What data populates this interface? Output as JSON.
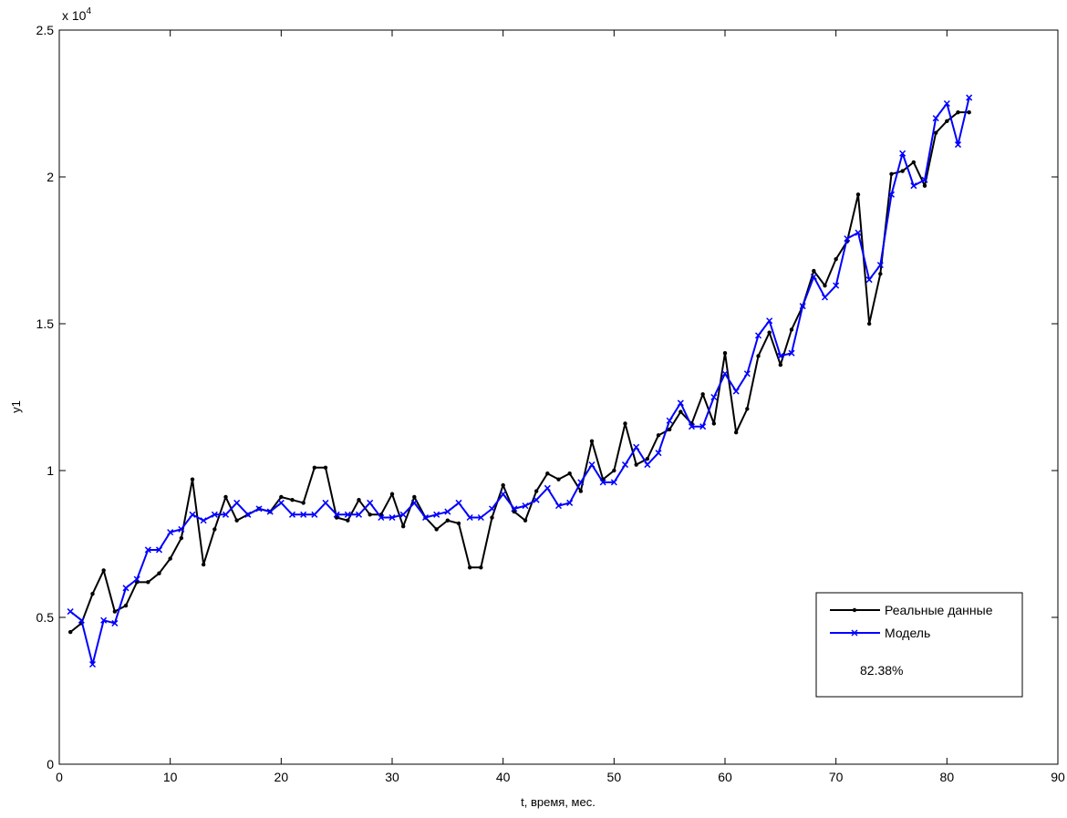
{
  "chart_data": {
    "type": "line",
    "xlabel": "t, время, мес.",
    "ylabel": "y1",
    "y_exponent_label": "x 10",
    "y_exponent_power": "4",
    "xlim": [
      0,
      90
    ],
    "ylim": [
      0,
      25000
    ],
    "x_ticks": [
      0,
      10,
      20,
      30,
      40,
      50,
      60,
      70,
      80,
      90
    ],
    "y_ticks": [
      0,
      5000,
      10000,
      15000,
      20000,
      25000
    ],
    "x_tick_labels": [
      "0",
      "10",
      "20",
      "30",
      "40",
      "50",
      "60",
      "70",
      "80",
      "90"
    ],
    "y_tick_labels": [
      "0",
      "0.5",
      "1",
      "1.5",
      "2",
      "2.5"
    ],
    "grid": false,
    "legend_position": "bottom-right",
    "annotation": "82.38%",
    "x": [
      1,
      2,
      3,
      4,
      5,
      6,
      7,
      8,
      9,
      10,
      11,
      12,
      13,
      14,
      15,
      16,
      17,
      18,
      19,
      20,
      21,
      22,
      23,
      24,
      25,
      26,
      27,
      28,
      29,
      30,
      31,
      32,
      33,
      34,
      35,
      36,
      37,
      38,
      39,
      40,
      41,
      42,
      43,
      44,
      45,
      46,
      47,
      48,
      49,
      50,
      51,
      52,
      53,
      54,
      55,
      56,
      57,
      58,
      59,
      60,
      61,
      62,
      63,
      64,
      65,
      66,
      67,
      68,
      69,
      70,
      71,
      72,
      73,
      74,
      75,
      76,
      77,
      78,
      79,
      80,
      81,
      82
    ],
    "series": [
      {
        "name": "Реальные данные",
        "color": "#000000",
        "marker": "dot",
        "values": [
          4500,
          4800,
          5800,
          6600,
          5200,
          5400,
          6200,
          6200,
          6500,
          7000,
          7700,
          9700,
          6800,
          8000,
          9100,
          8300,
          8500,
          8700,
          8600,
          9100,
          9000,
          8900,
          10100,
          10100,
          8400,
          8300,
          9000,
          8500,
          8500,
          9200,
          8100,
          9100,
          8400,
          8000,
          8300,
          8200,
          6700,
          6700,
          8400,
          9500,
          8600,
          8300,
          9300,
          9900,
          9700,
          9900,
          9300,
          11000,
          9700,
          10000,
          11600,
          10200,
          10400,
          11200,
          11400,
          12000,
          11600,
          12600,
          11600,
          14000,
          11300,
          12100,
          13900,
          14700,
          13600,
          14800,
          15600,
          16800,
          16300,
          17200,
          17800,
          19400,
          15000,
          16700,
          20100,
          20200,
          20500,
          19700,
          21500,
          21900,
          22200,
          22200
        ]
      },
      {
        "name": "Модель",
        "color": "#0000ff",
        "marker": "x",
        "values": [
          5200,
          4900,
          3400,
          4900,
          4800,
          6000,
          6300,
          7300,
          7300,
          7900,
          8000,
          8500,
          8300,
          8500,
          8500,
          8900,
          8500,
          8700,
          8600,
          8900,
          8500,
          8500,
          8500,
          8900,
          8500,
          8500,
          8500,
          8900,
          8400,
          8400,
          8500,
          8900,
          8400,
          8500,
          8600,
          8900,
          8400,
          8400,
          8700,
          9200,
          8700,
          8800,
          9000,
          9400,
          8800,
          8900,
          9600,
          10200,
          9600,
          9600,
          10200,
          10800,
          10200,
          10600,
          11700,
          12300,
          11500,
          11500,
          12500,
          13300,
          12700,
          13300,
          14600,
          15100,
          13900,
          14000,
          15600,
          16600,
          15900,
          16300,
          17900,
          18100,
          16500,
          17000,
          19400,
          20800,
          19700,
          19900,
          22000,
          22500,
          21100,
          22700
        ]
      }
    ]
  }
}
